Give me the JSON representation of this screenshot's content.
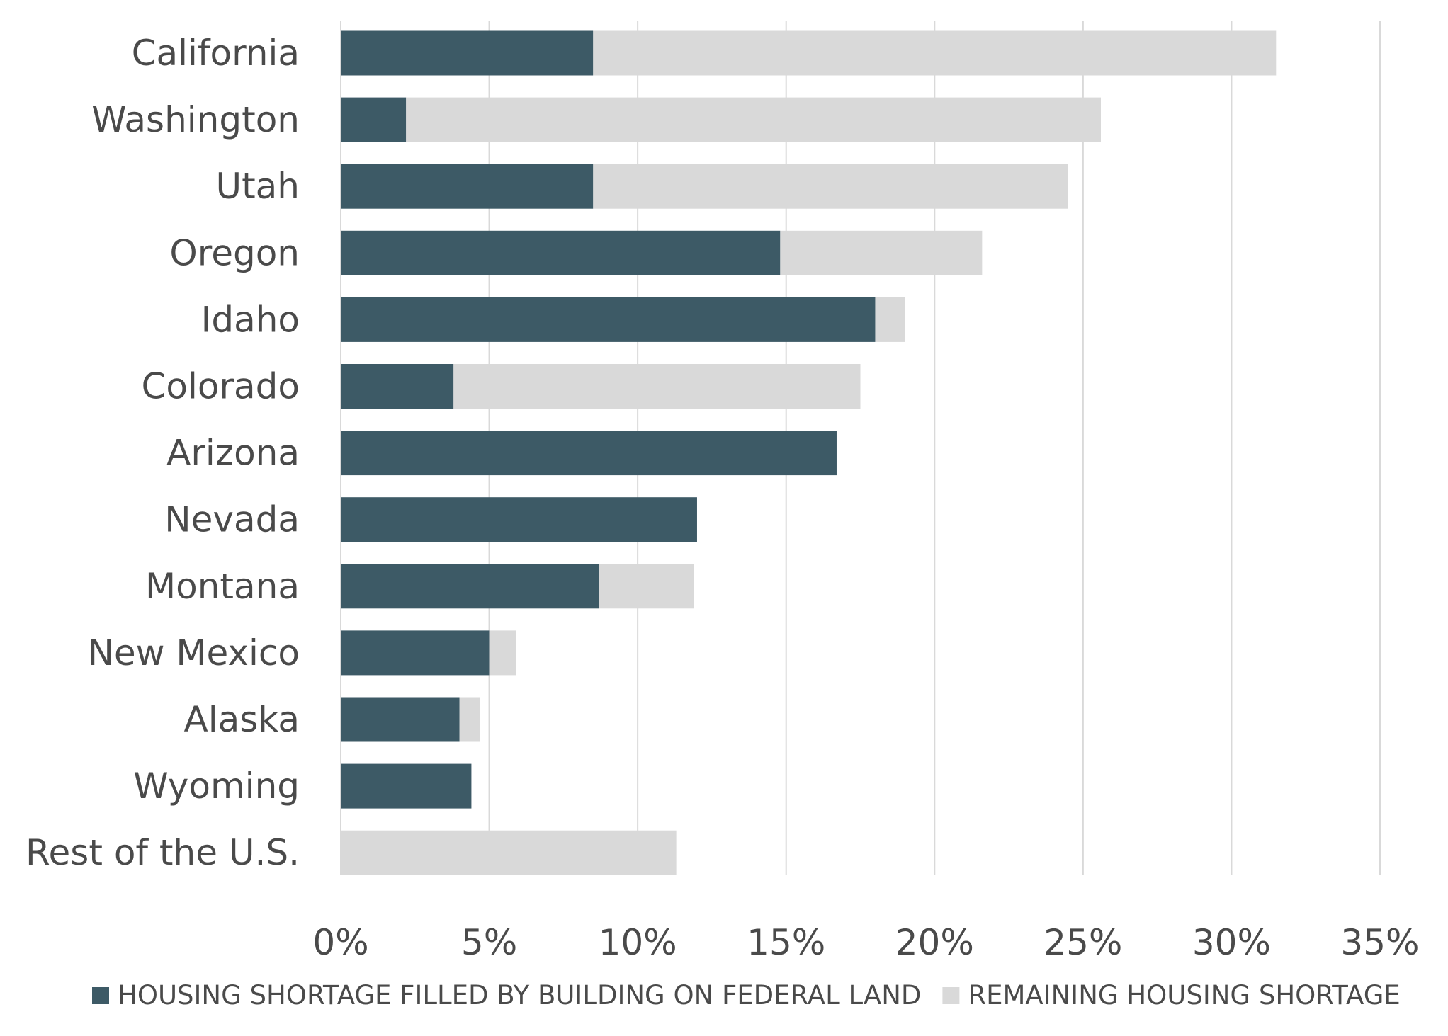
{
  "chart_data": {
    "type": "bar",
    "orientation": "horizontal",
    "stacked": true,
    "categories": [
      "California",
      "Washington",
      "Utah",
      "Oregon",
      "Idaho",
      "Colorado",
      "Arizona",
      "Nevada",
      "Montana",
      "New Mexico",
      "Alaska",
      "Wyoming",
      "Rest of the U.S."
    ],
    "series": [
      {
        "name": "HOUSING SHORTAGE FILLED BY BUILDING ON FEDERAL LAND",
        "color": "#3d5a66",
        "values": [
          8.5,
          2.2,
          8.5,
          14.8,
          18.0,
          3.8,
          16.7,
          12.0,
          8.7,
          5.0,
          4.0,
          4.4,
          0
        ]
      },
      {
        "name": "REMAINING HOUSING SHORTAGE",
        "color": "#d9d9d9",
        "values": [
          23.0,
          23.4,
          16.0,
          6.8,
          1.0,
          13.7,
          0,
          0,
          3.2,
          0.9,
          0.7,
          0,
          11.3
        ]
      }
    ],
    "xlim": [
      0,
      35
    ],
    "xticks": [
      0,
      5,
      10,
      15,
      20,
      25,
      30,
      35
    ],
    "xtick_labels": [
      "0%",
      "5%",
      "10%",
      "15%",
      "20%",
      "25%",
      "30%",
      "35%"
    ],
    "grid": "vertical",
    "legend": "bottom",
    "title": "",
    "xlabel": "",
    "ylabel": ""
  }
}
